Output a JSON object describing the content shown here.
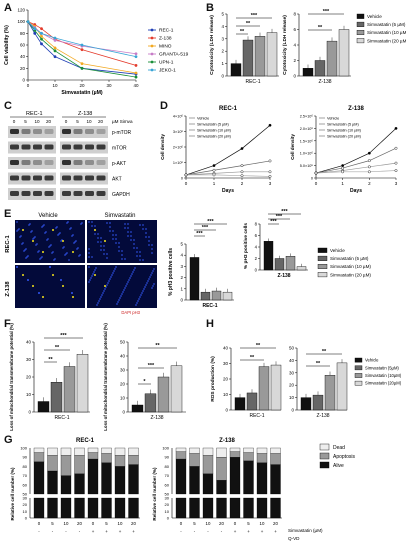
{
  "panels": {
    "A": "A",
    "B": "B",
    "C": "C",
    "D": "D",
    "E": "E",
    "F": "F",
    "G": "G",
    "H": "H"
  },
  "panelA": {
    "ylabel": "Cell viability (%)",
    "xlabel": "Simvastatin (µM)",
    "yticks": [
      "0",
      "20",
      "40",
      "60",
      "80",
      "100",
      "120"
    ],
    "xticks": [
      "0",
      "10",
      "20",
      "30",
      "40"
    ],
    "legend": [
      "REC-1",
      "Z-138",
      "MINO",
      "GRANTA-519",
      "UPN-1",
      "JEKO-1"
    ],
    "colors": [
      "#1f3fb6",
      "#e43b2c",
      "#f2a922",
      "#c77cc7",
      "#1a8f3a",
      "#3aa5d6"
    ]
  },
  "panelB": {
    "ylabel": "Cytotoxicity (LDH release)",
    "groups": [
      "REC-1",
      "Z-138"
    ],
    "legend": [
      "Vehicle",
      "Simvastatin (5 µM)",
      "Simvastatin (10 µM)",
      "Simvastatin (20 µM)"
    ],
    "sig_rec": [
      "**",
      "**",
      "***"
    ],
    "sig_z": [
      "**",
      "***"
    ],
    "yt1": [
      "0",
      "1",
      "2",
      "3",
      "4",
      "5"
    ],
    "yt2": [
      "0",
      "2",
      "4",
      "6",
      "8"
    ]
  },
  "panelC": {
    "groups": [
      "REC-1",
      "Z-138"
    ],
    "doses": [
      "0",
      "5",
      "10",
      "20",
      "0",
      "5",
      "10",
      "20"
    ],
    "unit": "µM Simva",
    "rows": [
      "p-mTOR",
      "mTOR",
      "p-AKT",
      "AKT",
      "GAPDH"
    ]
  },
  "panelD": {
    "titles": [
      "REC-1",
      "Z-138"
    ],
    "ylabel": "Cell density",
    "xlabel": "Days",
    "legend": [
      "Vehicle",
      "Simvastatin (5 µM)",
      "Simvastatin (10 µM)",
      "Simvastatin (20 µM)"
    ],
    "yt1": [
      "0",
      "1×10⁶",
      "2×10⁶",
      "3×10⁶",
      "4×10⁶"
    ],
    "yt2": [
      "0",
      "5.0×10⁵",
      "1.0×10⁶",
      "1.5×10⁶",
      "2.0×10⁶",
      "2.5×10⁶"
    ],
    "xt": [
      "0",
      "1",
      "2",
      "3"
    ]
  },
  "panelE": {
    "cols": [
      "Vehicle",
      "Simvastatin"
    ],
    "rows": [
      "REC-1",
      "Z-138"
    ],
    "stain": "DAPI pH3",
    "ylabel": "% pH3 positive cells",
    "groups": [
      "REC-1",
      "Z-138"
    ],
    "legend": [
      "Vehicle",
      "Simvastatin (5 µM)",
      "Simvastatin (10 µM)",
      "Simvastatin (20 µM)"
    ],
    "sig": [
      "***",
      "***",
      "***"
    ],
    "yt1": [
      "0",
      "1",
      "2",
      "3",
      "4",
      "5"
    ],
    "yt2": [
      "0",
      "2",
      "4",
      "6",
      "8"
    ]
  },
  "panelF": {
    "ylabel": "Loss of mitochondrial transmembrane potential (%)",
    "groups": [
      "REC-1",
      "Z-138"
    ],
    "sig_rec": [
      "**",
      "**",
      "***"
    ],
    "sig_z": [
      "*",
      "***",
      "**"
    ],
    "yt1": [
      "0",
      "10",
      "20",
      "30",
      "40"
    ],
    "yt2": [
      "0",
      "10",
      "20",
      "30",
      "40",
      "50"
    ]
  },
  "panelG": {
    "titles": [
      "REC-1",
      "Z-138"
    ],
    "ylabel": "Relative cell number (%)",
    "legend": [
      "Dead",
      "Apoptosis",
      "Alive"
    ],
    "doses": [
      "0",
      "5",
      "10",
      "20",
      "0",
      "5",
      "10",
      "20"
    ],
    "qvd": [
      "-",
      "-",
      "-",
      "-",
      "+",
      "+",
      "+",
      "+"
    ],
    "row_simva": "Simvastatin (µM)",
    "row_qvd": "Q-VD",
    "yt_top": [
      "50",
      "60",
      "70",
      "80",
      "90",
      "100"
    ],
    "yt_bot": [
      "0",
      "10",
      "20",
      "30"
    ]
  },
  "panelH": {
    "ylabel": "ROS production (%)",
    "groups": [
      "REC-1",
      "Z-138"
    ],
    "legend": [
      "Vehicle",
      "Simvastatin (5µM)",
      "Simvastatin (10µM)",
      "Simvastatin (20µM)"
    ],
    "sig": [
      "**",
      "**",
      "**",
      "**"
    ],
    "yt1": [
      "0",
      "10",
      "20",
      "30",
      "40"
    ],
    "yt2": [
      "0",
      "10",
      "20",
      "30",
      "40",
      "50"
    ]
  },
  "chart_data": [
    {
      "type": "line",
      "panel": "A",
      "xlabel": "Simvastatin (µM)",
      "ylabel": "Cell viability (%)",
      "ylim": [
        0,
        120
      ],
      "xlim": [
        0,
        40
      ],
      "x": [
        0,
        2.5,
        5,
        10,
        20,
        40
      ],
      "series": [
        {
          "name": "REC-1",
          "values": [
            100,
            80,
            62,
            40,
            20,
            10
          ]
        },
        {
          "name": "Z-138",
          "values": [
            100,
            95,
            88,
            70,
            52,
            25
          ]
        },
        {
          "name": "MINO",
          "values": [
            100,
            92,
            75,
            55,
            28,
            12
          ]
        },
        {
          "name": "GRANTA-519",
          "values": [
            100,
            90,
            80,
            68,
            58,
            45
          ]
        },
        {
          "name": "UPN-1",
          "values": [
            100,
            85,
            70,
            50,
            20,
            5
          ]
        },
        {
          "name": "JEKO-1",
          "values": [
            100,
            88,
            80,
            72,
            60,
            40
          ]
        }
      ]
    },
    {
      "type": "bar",
      "panel": "B-REC-1",
      "ylabel": "Cytotoxicity (LDH release)",
      "ylim": [
        0,
        5
      ],
      "categories": [
        "Vehicle",
        "Simvastatin (5 µM)",
        "Simvastatin (10 µM)",
        "Simvastatin (20 µM)"
      ],
      "values": [
        1.0,
        2.9,
        3.2,
        3.5
      ]
    },
    {
      "type": "bar",
      "panel": "B-Z-138",
      "ylabel": "Cytotoxicity (LDH release)",
      "ylim": [
        0,
        8
      ],
      "categories": [
        "Vehicle",
        "Simvastatin (5 µM)",
        "Simvastatin (10 µM)",
        "Simvastatin (20 µM)"
      ],
      "values": [
        1.0,
        2.0,
        4.5,
        6.0
      ]
    },
    {
      "type": "line",
      "panel": "D-REC-1",
      "title": "REC-1",
      "xlabel": "Days",
      "ylabel": "Cell density",
      "ylim": [
        0,
        4000000
      ],
      "x": [
        0,
        1,
        2,
        3
      ],
      "series": [
        {
          "name": "Vehicle",
          "values": [
            200000,
            800000,
            1900000,
            3400000
          ]
        },
        {
          "name": "Simvastatin (5 µM)",
          "values": [
            200000,
            500000,
            800000,
            1100000
          ]
        },
        {
          "name": "Simvastatin (10 µM)",
          "values": [
            200000,
            300000,
            400000,
            400000
          ]
        },
        {
          "name": "Simvastatin (20 µM)",
          "values": [
            200000,
            200000,
            150000,
            100000
          ]
        }
      ]
    },
    {
      "type": "line",
      "panel": "D-Z-138",
      "title": "Z-138",
      "xlabel": "Days",
      "ylabel": "Cell density",
      "ylim": [
        0,
        2500000
      ],
      "x": [
        0,
        1,
        2,
        3
      ],
      "series": [
        {
          "name": "Vehicle",
          "values": [
            200000,
            500000,
            1000000,
            2000000
          ]
        },
        {
          "name": "Simvastatin (5 µM)",
          "values": [
            200000,
            400000,
            700000,
            1200000
          ]
        },
        {
          "name": "Simvastatin (10 µM)",
          "values": [
            200000,
            300000,
            450000,
            600000
          ]
        },
        {
          "name": "Simvastatin (20 µM)",
          "values": [
            200000,
            250000,
            250000,
            300000
          ]
        }
      ]
    },
    {
      "type": "bar",
      "panel": "E-REC-1",
      "ylabel": "% pH3 positive cells",
      "ylim": [
        0,
        5
      ],
      "categories": [
        "Vehicle",
        "Simvastatin (5 µM)",
        "Simvastatin (10 µM)",
        "Simvastatin (20 µM)"
      ],
      "values": [
        3.8,
        0.7,
        0.8,
        0.7
      ]
    },
    {
      "type": "bar",
      "panel": "E-Z-138",
      "ylabel": "% pH3 positive cells",
      "ylim": [
        0,
        8
      ],
      "categories": [
        "Vehicle",
        "Simvastatin (5 µM)",
        "Simvastatin (10 µM)",
        "Simvastatin (20 µM)"
      ],
      "values": [
        5.0,
        2.0,
        2.4,
        0.6
      ]
    },
    {
      "type": "bar",
      "panel": "F-REC-1",
      "ylabel": "Loss of mitochondrial transmembrane potential (%)",
      "ylim": [
        0,
        40
      ],
      "categories": [
        "Vehicle",
        "Simvastatin (5 µM)",
        "Simvastatin (10 µM)",
        "Simvastatin (20 µM)"
      ],
      "values": [
        6,
        17,
        26,
        33
      ]
    },
    {
      "type": "bar",
      "panel": "F-Z-138",
      "ylabel": "Loss of mitochondrial transmembrane potential (%)",
      "ylim": [
        0,
        50
      ],
      "categories": [
        "Vehicle",
        "Simvastatin (5 µM)",
        "Simvastatin (10 µM)",
        "Simvastatin (20 µM)"
      ],
      "values": [
        5,
        13,
        25,
        33
      ]
    },
    {
      "type": "bar",
      "panel": "H-REC-1",
      "ylabel": "ROS production (%)",
      "ylim": [
        0,
        40
      ],
      "categories": [
        "Vehicle",
        "Simvastatin (5µM)",
        "Simvastatin (10µM)",
        "Simvastatin (20µM)"
      ],
      "values": [
        8,
        11,
        28,
        29
      ]
    },
    {
      "type": "bar",
      "panel": "H-Z-138",
      "ylabel": "ROS production (%)",
      "ylim": [
        0,
        50
      ],
      "categories": [
        "Vehicle",
        "Simvastatin (5µM)",
        "Simvastatin (10µM)",
        "Simvastatin (20µM)"
      ],
      "values": [
        10,
        12,
        28,
        38
      ]
    },
    {
      "type": "bar",
      "panel": "G-REC-1",
      "title": "REC-1",
      "ylabel": "Relative cell number (%)",
      "categories": [
        "0/-",
        "5/-",
        "10/-",
        "20/-",
        "0/+",
        "5/+",
        "10/+",
        "20/+"
      ],
      "series": [
        {
          "name": "Alive",
          "values": [
            85,
            75,
            70,
            72,
            88,
            84,
            80,
            82
          ]
        },
        {
          "name": "Apoptosis",
          "values": [
            10,
            17,
            22,
            20,
            7,
            10,
            12,
            10
          ]
        },
        {
          "name": "Dead",
          "values": [
            5,
            8,
            8,
            8,
            5,
            6,
            8,
            8
          ]
        }
      ]
    },
    {
      "type": "bar",
      "panel": "G-Z-138",
      "title": "Z-138",
      "ylabel": "Relative cell number (%)",
      "categories": [
        "0/-",
        "5/-",
        "10/-",
        "20/-",
        "0/+",
        "5/+",
        "10/+",
        "20/+"
      ],
      "series": [
        {
          "name": "Alive",
          "values": [
            88,
            80,
            72,
            65,
            90,
            86,
            84,
            82
          ]
        },
        {
          "name": "Apoptosis",
          "values": [
            8,
            14,
            20,
            25,
            6,
            9,
            10,
            12
          ]
        },
        {
          "name": "Dead",
          "values": [
            4,
            6,
            8,
            10,
            4,
            5,
            6,
            6
          ]
        }
      ]
    }
  ]
}
